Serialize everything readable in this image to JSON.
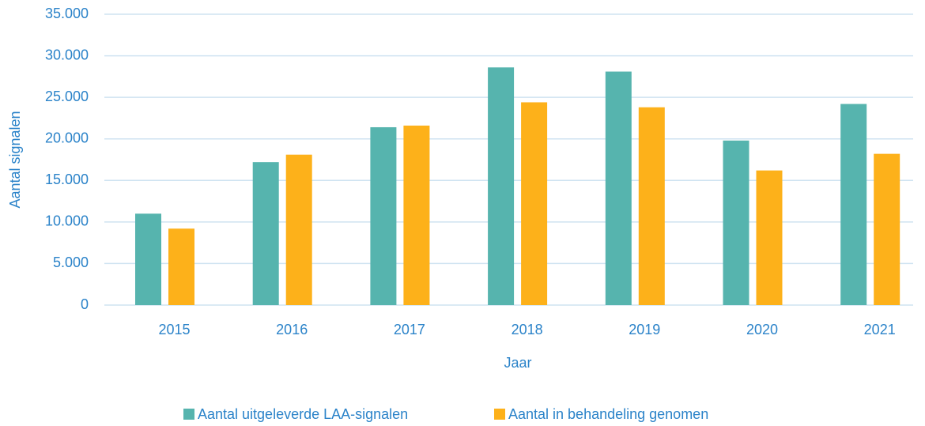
{
  "chart_data": {
    "type": "bar",
    "ylabel": "Aantal signalen",
    "xlabel": "Jaar",
    "categories": [
      "2015",
      "2016",
      "2017",
      "2018",
      "2019",
      "2020",
      "2021"
    ],
    "series": [
      {
        "name": "Aantal uitgeleverde LAA-signalen",
        "color": "#56b4ae",
        "values": [
          11000,
          17200,
          21400,
          28600,
          28100,
          19800,
          24200
        ]
      },
      {
        "name": "Aantal in behandeling genomen",
        "color": "#fdb11a",
        "values": [
          9200,
          18100,
          21600,
          24400,
          23800,
          16200,
          18200
        ]
      }
    ],
    "ylim": [
      0,
      35000
    ],
    "yticks": [
      0,
      {
        "value": 5000,
        "label": "5.000"
      },
      {
        "value": 10000,
        "label": "10.000"
      },
      {
        "value": 15000,
        "label": "15.000"
      },
      {
        "value": 20000,
        "label": "20.000"
      },
      {
        "value": 25000,
        "label": "25.000"
      },
      {
        "value": 30000,
        "label": "30.000"
      },
      {
        "value": 35000,
        "label": "35.000"
      }
    ],
    "grid": true,
    "legend": "bottom"
  }
}
